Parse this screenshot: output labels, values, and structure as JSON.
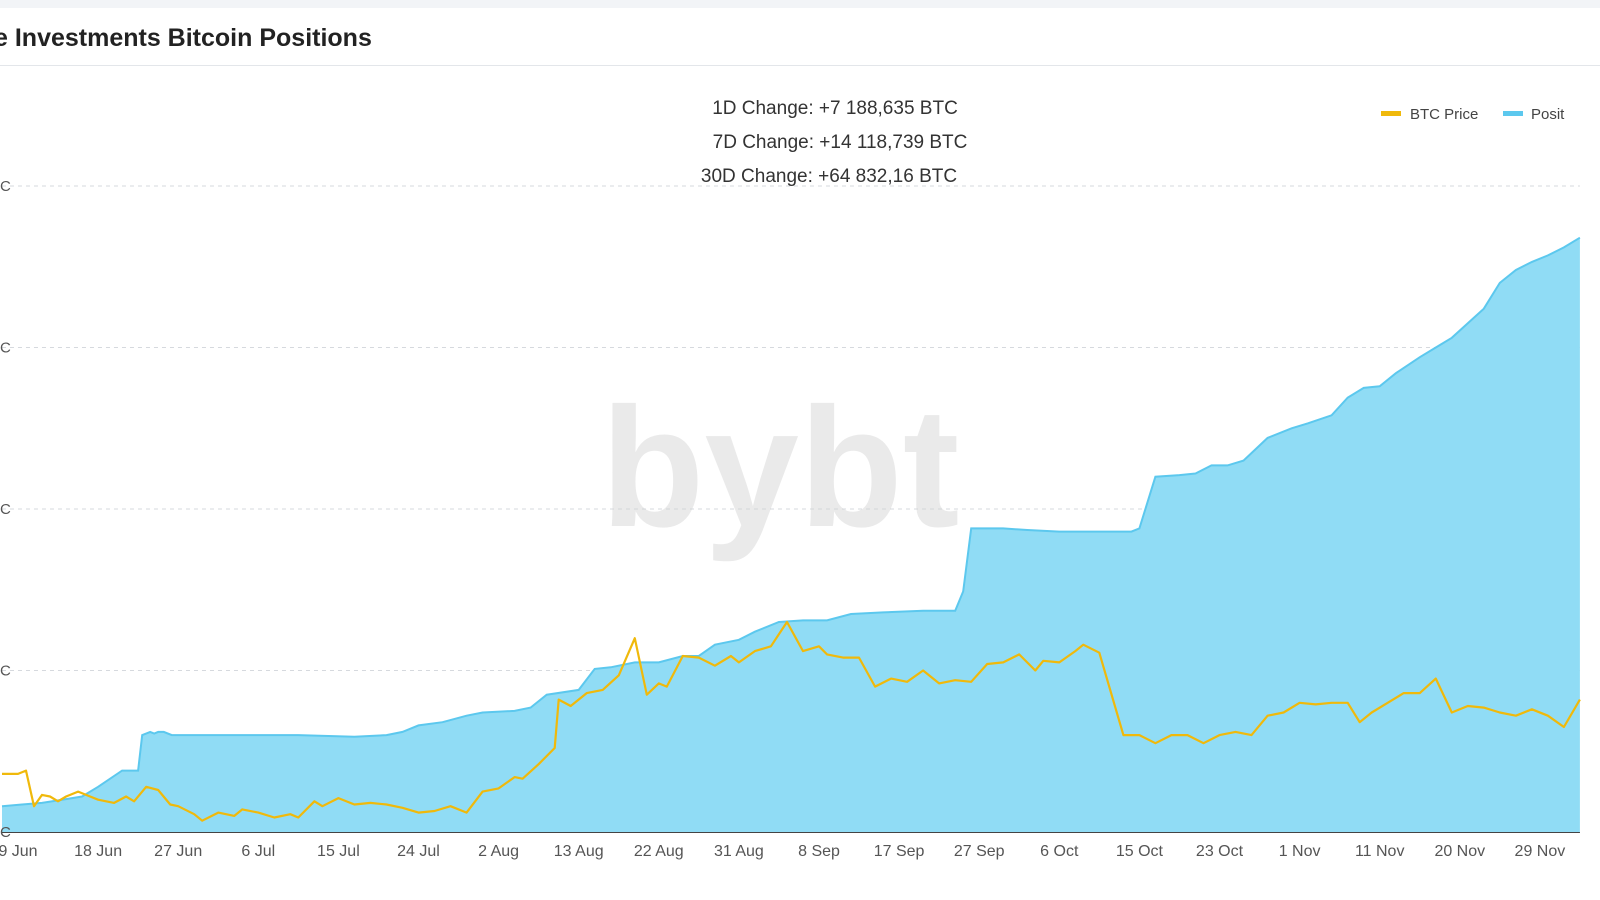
{
  "title": "e Investments Bitcoin Positions",
  "watermark": "bybt",
  "changes": [
    "1D Change: +7 188,635 BTC",
    "7D Change: +14 118,739 BTC",
    "30D Change: +64 832,16 BTC"
  ],
  "legend": {
    "btc_price": "BTC Price",
    "positions": "Posit"
  },
  "colors": {
    "btc_price": "#f0b90b",
    "positions_line": "#5cc8ee",
    "positions_fill": "#90dcf5"
  },
  "chart_data": {
    "type": "area",
    "xlabel": "",
    "ylabel": "",
    "grid": true,
    "legend_position": "top-right",
    "y_tick_labels": [
      "C",
      "C",
      "C",
      "C",
      "C"
    ],
    "x_tick_labels": [
      "9 Jun",
      "18 Jun",
      "27 Jun",
      "6 Jul",
      "15 Jul",
      "24 Jul",
      "2 Aug",
      "13 Aug",
      "22 Aug",
      "31 Aug",
      "8 Sep",
      "17 Sep",
      "27 Sep",
      "6 Oct",
      "15 Oct",
      "23 Oct",
      "1 Nov",
      "11 Nov",
      "20 Nov",
      "29 Nov"
    ],
    "x_range": [
      -0.2,
      19.5
    ],
    "y_range": [
      0,
      4
    ],
    "series": [
      {
        "name": "Posit",
        "kind": "area",
        "points": [
          [
            -0.2,
            0.16
          ],
          [
            0.05,
            0.17
          ],
          [
            0.3,
            0.18
          ],
          [
            0.55,
            0.2
          ],
          [
            0.8,
            0.22
          ],
          [
            1.0,
            0.28
          ],
          [
            1.3,
            0.38
          ],
          [
            1.5,
            0.38
          ],
          [
            1.55,
            0.6
          ],
          [
            1.65,
            0.62
          ],
          [
            1.7,
            0.61
          ],
          [
            1.75,
            0.62
          ],
          [
            1.82,
            0.62
          ],
          [
            1.92,
            0.6
          ],
          [
            2.0,
            0.6
          ],
          [
            2.6,
            0.6
          ],
          [
            3.5,
            0.6
          ],
          [
            4.2,
            0.59
          ],
          [
            4.6,
            0.6
          ],
          [
            4.8,
            0.62
          ],
          [
            5.0,
            0.66
          ],
          [
            5.3,
            0.68
          ],
          [
            5.6,
            0.72
          ],
          [
            5.8,
            0.74
          ],
          [
            6.2,
            0.75
          ],
          [
            6.4,
            0.77
          ],
          [
            6.6,
            0.85
          ],
          [
            7.0,
            0.88
          ],
          [
            7.2,
            1.01
          ],
          [
            7.4,
            1.02
          ],
          [
            7.7,
            1.05
          ],
          [
            8.0,
            1.05
          ],
          [
            8.3,
            1.09
          ],
          [
            8.5,
            1.09
          ],
          [
            8.7,
            1.16
          ],
          [
            9.0,
            1.19
          ],
          [
            9.2,
            1.24
          ],
          [
            9.5,
            1.3
          ],
          [
            9.8,
            1.31
          ],
          [
            10.1,
            1.31
          ],
          [
            10.4,
            1.35
          ],
          [
            10.8,
            1.36
          ],
          [
            11.3,
            1.37
          ],
          [
            11.7,
            1.37
          ],
          [
            11.8,
            1.49
          ],
          [
            11.9,
            1.88
          ],
          [
            12.3,
            1.88
          ],
          [
            12.6,
            1.87
          ],
          [
            13.0,
            1.86
          ],
          [
            13.9,
            1.86
          ],
          [
            14.0,
            1.88
          ],
          [
            14.2,
            2.2
          ],
          [
            14.5,
            2.21
          ],
          [
            14.7,
            2.22
          ],
          [
            14.9,
            2.27
          ],
          [
            15.1,
            2.27
          ],
          [
            15.3,
            2.3
          ],
          [
            15.6,
            2.44
          ],
          [
            15.9,
            2.5
          ],
          [
            16.1,
            2.53
          ],
          [
            16.4,
            2.58
          ],
          [
            16.6,
            2.69
          ],
          [
            16.8,
            2.75
          ],
          [
            17.0,
            2.76
          ],
          [
            17.2,
            2.84
          ],
          [
            17.5,
            2.94
          ],
          [
            17.7,
            3.0
          ],
          [
            17.9,
            3.06
          ],
          [
            18.1,
            3.15
          ],
          [
            18.3,
            3.24
          ],
          [
            18.5,
            3.4
          ],
          [
            18.7,
            3.48
          ],
          [
            18.9,
            3.53
          ],
          [
            19.1,
            3.57
          ],
          [
            19.3,
            3.62
          ],
          [
            19.5,
            3.68
          ]
        ]
      },
      {
        "name": "BTC Price",
        "kind": "line",
        "points": [
          [
            -0.2,
            0.36
          ],
          [
            0.0,
            0.36
          ],
          [
            0.1,
            0.38
          ],
          [
            0.2,
            0.16
          ],
          [
            0.3,
            0.23
          ],
          [
            0.4,
            0.22
          ],
          [
            0.5,
            0.19
          ],
          [
            0.6,
            0.22
          ],
          [
            0.75,
            0.25
          ],
          [
            0.9,
            0.22
          ],
          [
            1.0,
            0.2
          ],
          [
            1.2,
            0.18
          ],
          [
            1.35,
            0.22
          ],
          [
            1.45,
            0.19
          ],
          [
            1.6,
            0.28
          ],
          [
            1.75,
            0.26
          ],
          [
            1.9,
            0.17
          ],
          [
            2.0,
            0.16
          ],
          [
            2.2,
            0.11
          ],
          [
            2.3,
            0.07
          ],
          [
            2.5,
            0.12
          ],
          [
            2.7,
            0.1
          ],
          [
            2.8,
            0.14
          ],
          [
            3.0,
            0.12
          ],
          [
            3.2,
            0.09
          ],
          [
            3.4,
            0.11
          ],
          [
            3.5,
            0.09
          ],
          [
            3.7,
            0.19
          ],
          [
            3.8,
            0.16
          ],
          [
            4.0,
            0.21
          ],
          [
            4.2,
            0.17
          ],
          [
            4.4,
            0.18
          ],
          [
            4.6,
            0.17
          ],
          [
            4.8,
            0.15
          ],
          [
            5.0,
            0.12
          ],
          [
            5.2,
            0.13
          ],
          [
            5.4,
            0.16
          ],
          [
            5.6,
            0.12
          ],
          [
            5.8,
            0.25
          ],
          [
            6.0,
            0.27
          ],
          [
            6.2,
            0.34
          ],
          [
            6.3,
            0.33
          ],
          [
            6.5,
            0.42
          ],
          [
            6.7,
            0.52
          ],
          [
            6.75,
            0.82
          ],
          [
            6.9,
            0.78
          ],
          [
            7.1,
            0.86
          ],
          [
            7.3,
            0.88
          ],
          [
            7.5,
            0.97
          ],
          [
            7.7,
            1.2
          ],
          [
            7.85,
            0.85
          ],
          [
            8.0,
            0.92
          ],
          [
            8.1,
            0.9
          ],
          [
            8.3,
            1.09
          ],
          [
            8.5,
            1.08
          ],
          [
            8.7,
            1.03
          ],
          [
            8.9,
            1.09
          ],
          [
            9.0,
            1.05
          ],
          [
            9.2,
            1.12
          ],
          [
            9.4,
            1.15
          ],
          [
            9.6,
            1.3
          ],
          [
            9.8,
            1.12
          ],
          [
            10.0,
            1.15
          ],
          [
            10.1,
            1.1
          ],
          [
            10.3,
            1.08
          ],
          [
            10.5,
            1.08
          ],
          [
            10.7,
            0.9
          ],
          [
            10.9,
            0.95
          ],
          [
            11.1,
            0.93
          ],
          [
            11.3,
            1.0
          ],
          [
            11.5,
            0.92
          ],
          [
            11.7,
            0.94
          ],
          [
            11.9,
            0.93
          ],
          [
            12.1,
            1.04
          ],
          [
            12.3,
            1.05
          ],
          [
            12.5,
            1.1
          ],
          [
            12.7,
            1.0
          ],
          [
            12.8,
            1.06
          ],
          [
            13.0,
            1.05
          ],
          [
            13.2,
            1.12
          ],
          [
            13.3,
            1.16
          ],
          [
            13.5,
            1.11
          ],
          [
            13.8,
            0.6
          ],
          [
            14.0,
            0.6
          ],
          [
            14.2,
            0.55
          ],
          [
            14.4,
            0.6
          ],
          [
            14.6,
            0.6
          ],
          [
            14.8,
            0.55
          ],
          [
            15.0,
            0.6
          ],
          [
            15.2,
            0.62
          ],
          [
            15.4,
            0.6
          ],
          [
            15.6,
            0.72
          ],
          [
            15.8,
            0.74
          ],
          [
            16.0,
            0.8
          ],
          [
            16.2,
            0.79
          ],
          [
            16.4,
            0.8
          ],
          [
            16.6,
            0.8
          ],
          [
            16.75,
            0.68
          ],
          [
            16.9,
            0.74
          ],
          [
            17.1,
            0.8
          ],
          [
            17.3,
            0.86
          ],
          [
            17.5,
            0.86
          ],
          [
            17.7,
            0.95
          ],
          [
            17.9,
            0.74
          ],
          [
            18.1,
            0.78
          ],
          [
            18.3,
            0.77
          ],
          [
            18.5,
            0.74
          ],
          [
            18.7,
            0.72
          ],
          [
            18.9,
            0.76
          ],
          [
            19.1,
            0.72
          ],
          [
            19.3,
            0.65
          ],
          [
            19.5,
            0.82
          ]
        ]
      }
    ]
  }
}
